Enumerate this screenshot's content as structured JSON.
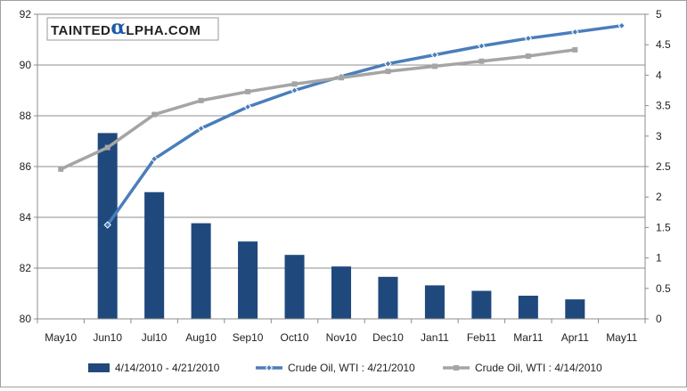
{
  "logo": {
    "pre": "TAINTED",
    "alpha": "α",
    "post": "LPHA.COM"
  },
  "chart_data": {
    "type": "bar+line",
    "categories": [
      "May10",
      "Jun10",
      "Jul10",
      "Aug10",
      "Sep10",
      "Oct10",
      "Nov10",
      "Dec10",
      "Jan11",
      "Feb11",
      "Mar11",
      "Apr11",
      "May11"
    ],
    "left_axis": {
      "min": 80,
      "max": 92,
      "ticks": [
        80,
        82,
        84,
        86,
        88,
        90,
        92
      ]
    },
    "right_axis": {
      "min": 0,
      "max": 5,
      "ticks": [
        "0",
        "0.5",
        "1",
        "1.5",
        "2",
        "2.5",
        "3",
        "3.5",
        "4",
        "4.5",
        "5"
      ]
    },
    "grid": true,
    "legend_position": "bottom",
    "series": [
      {
        "name": "4/14/2010 - 4/21/2010",
        "kind": "bar",
        "axis": "right",
        "color": "#1f497d",
        "values": [
          null,
          3.05,
          2.08,
          1.57,
          1.27,
          1.05,
          0.86,
          0.69,
          0.55,
          0.46,
          0.38,
          0.32,
          null
        ]
      },
      {
        "name": "Crude Oil, WTI : 4/21/2010",
        "kind": "line",
        "axis": "left",
        "color": "#4a7ebb",
        "marker": "diamond",
        "values": [
          null,
          83.7,
          86.3,
          87.5,
          88.35,
          89.0,
          89.55,
          90.05,
          90.4,
          90.75,
          91.05,
          91.3,
          91.55
        ]
      },
      {
        "name": "Crude Oil, WTI : 4/14/2010",
        "kind": "line",
        "axis": "left",
        "color": "#a5a5a5",
        "marker": "square",
        "values": [
          85.9,
          86.75,
          88.05,
          88.6,
          88.95,
          89.25,
          89.5,
          89.75,
          89.95,
          90.15,
          90.35,
          90.6,
          null
        ]
      }
    ]
  }
}
